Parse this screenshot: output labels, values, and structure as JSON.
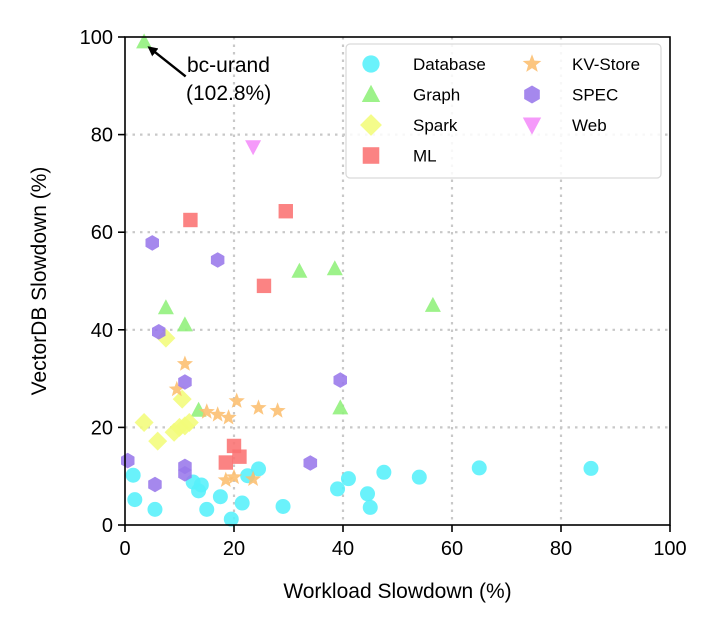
{
  "chart_data": {
    "type": "scatter",
    "title": "",
    "xlabel": "Workload Slowdown (%)",
    "ylabel": "VectorDB Slowdown (%)",
    "xlim": [
      0,
      100
    ],
    "ylim": [
      0,
      100
    ],
    "xticks": [
      0,
      20,
      40,
      60,
      80,
      100
    ],
    "yticks": [
      0,
      20,
      40,
      60,
      80,
      100
    ],
    "grid": true,
    "legend_position": "top-right",
    "annotation": {
      "line1": "bc-urand",
      "line2": "(102.8%)",
      "point": [
        3.5,
        99.5
      ],
      "text_at": [
        11.5,
        91.5
      ]
    },
    "series": [
      {
        "name": "Database",
        "marker": "circle",
        "color": "#55f0fa",
        "points": [
          [
            1.5,
            10.2
          ],
          [
            1.8,
            5.2
          ],
          [
            5.5,
            3.2
          ],
          [
            12.5,
            8.8
          ],
          [
            13.5,
            7
          ],
          [
            14,
            8.2
          ],
          [
            15,
            3.2
          ],
          [
            17.5,
            5.8
          ],
          [
            19.5,
            1.2
          ],
          [
            21.5,
            4.5
          ],
          [
            22.5,
            10.1
          ],
          [
            24.5,
            11.5
          ],
          [
            29,
            3.8
          ],
          [
            39,
            7.4
          ],
          [
            41,
            9.5
          ],
          [
            44.5,
            6.4
          ],
          [
            45,
            3.6
          ],
          [
            47.5,
            10.8
          ],
          [
            54,
            9.8
          ],
          [
            65,
            11.7
          ],
          [
            85.5,
            11.6
          ]
        ]
      },
      {
        "name": "Graph",
        "marker": "triangle-up",
        "color": "#90f07a",
        "points": [
          [
            3.5,
            99
          ],
          [
            7.5,
            44.5
          ],
          [
            11,
            41
          ],
          [
            13.5,
            23.5
          ],
          [
            32,
            52
          ],
          [
            38.5,
            52.5
          ],
          [
            39.5,
            24
          ],
          [
            56.5,
            45
          ]
        ]
      },
      {
        "name": "Spark",
        "marker": "diamond",
        "color": "#f2fc7a",
        "points": [
          [
            3.5,
            21
          ],
          [
            6,
            17.2
          ],
          [
            7.5,
            38.3
          ],
          [
            9,
            19
          ],
          [
            10,
            20
          ],
          [
            10.5,
            25.8
          ],
          [
            11,
            20.3
          ],
          [
            11.8,
            21
          ]
        ]
      },
      {
        "name": "ML",
        "marker": "square",
        "color": "#fb7272",
        "points": [
          [
            12,
            62.5
          ],
          [
            18.5,
            12.8
          ],
          [
            20,
            16.2
          ],
          [
            21,
            14
          ],
          [
            25.5,
            49
          ],
          [
            29.5,
            64.3
          ]
        ]
      },
      {
        "name": "KV-Store",
        "marker": "star",
        "color": "#fcbe6e",
        "points": [
          [
            9.5,
            27.8
          ],
          [
            11,
            33
          ],
          [
            15,
            23.2
          ],
          [
            17,
            22.6
          ],
          [
            19,
            22
          ],
          [
            20.5,
            25.4
          ],
          [
            24.5,
            24
          ],
          [
            28,
            23.4
          ],
          [
            18.5,
            9.2
          ],
          [
            20,
            9.8
          ],
          [
            23.5,
            9.4
          ]
        ]
      },
      {
        "name": "SPEC",
        "marker": "hexagon",
        "color": "#9878ea",
        "points": [
          [
            0.5,
            13.2
          ],
          [
            5,
            57.8
          ],
          [
            5.5,
            8.3
          ],
          [
            6.2,
            39.6
          ],
          [
            11,
            29.3
          ],
          [
            11,
            12
          ],
          [
            11,
            10.5
          ],
          [
            17,
            54.3
          ],
          [
            34,
            12.7
          ],
          [
            39.5,
            29.7
          ]
        ]
      },
      {
        "name": "Web",
        "marker": "triangle-down",
        "color": "#f48cf9",
        "points": [
          [
            23.5,
            77.5
          ]
        ]
      }
    ]
  }
}
